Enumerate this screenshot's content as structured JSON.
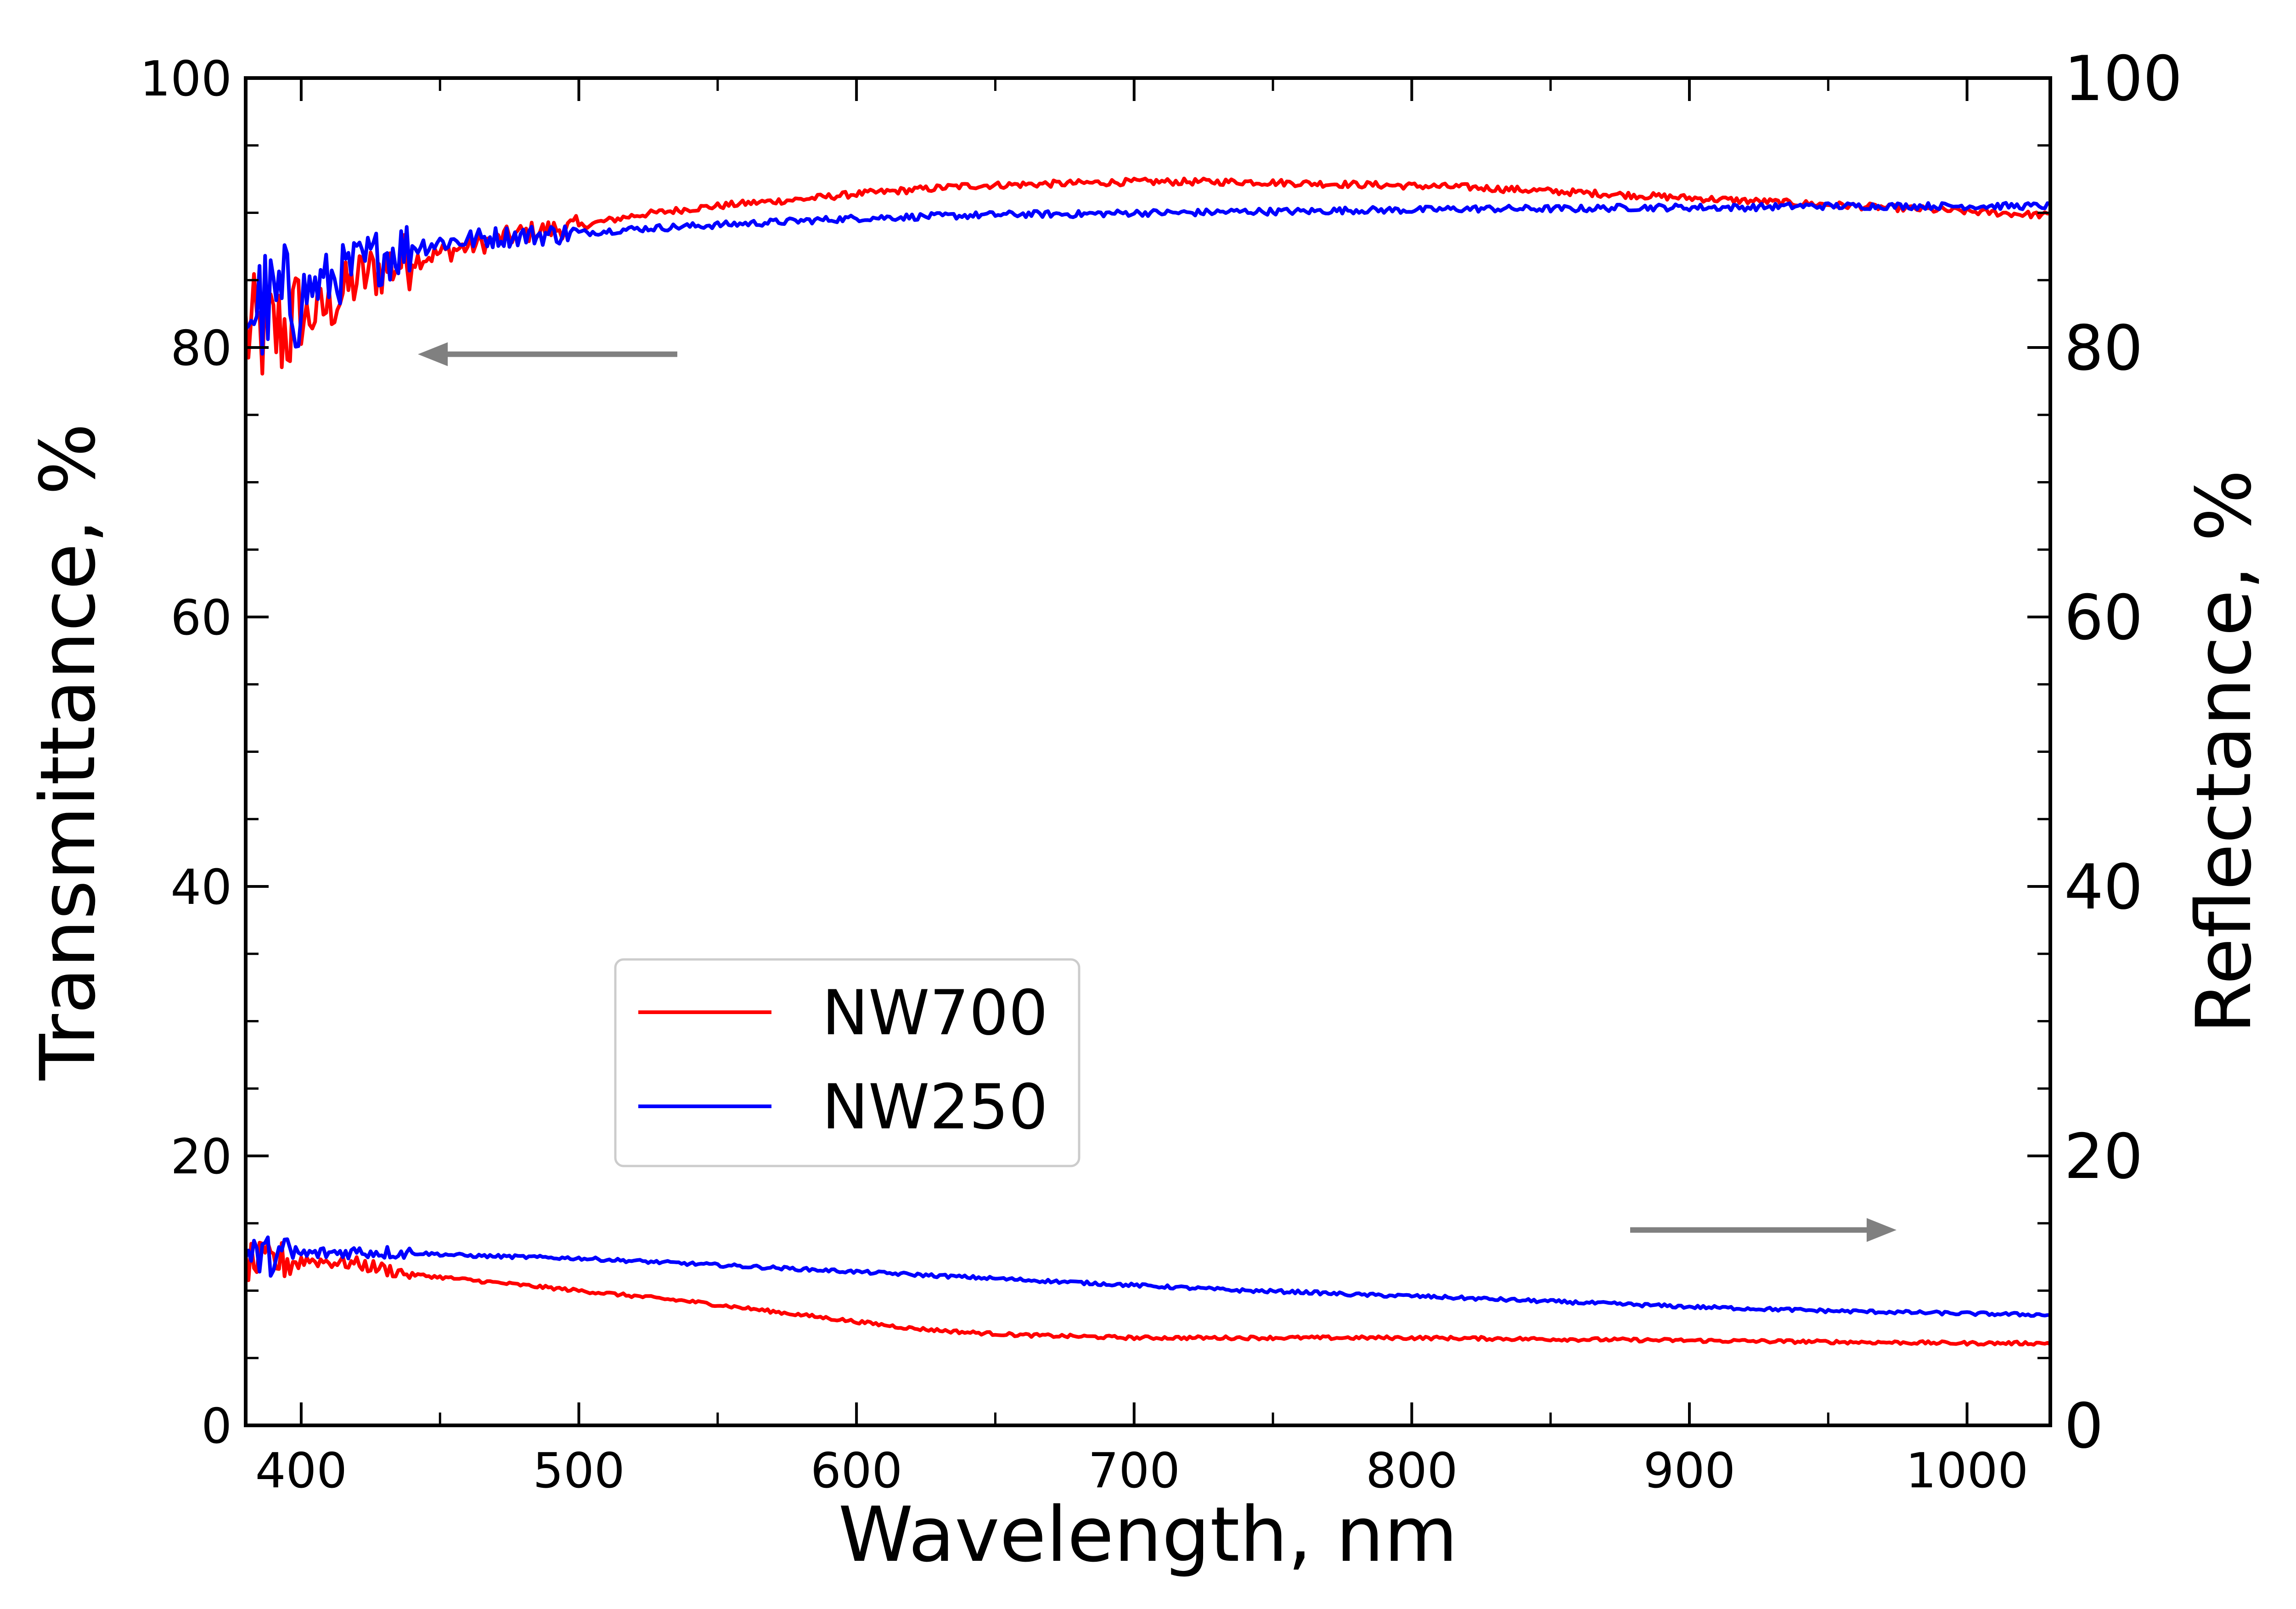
{
  "chart_data": {
    "type": "line",
    "xlabel": "Wavelength, nm",
    "ylabel_left": "Transmittance, %",
    "ylabel_right": "Reflectance, %",
    "xlim": [
      380,
      1030
    ],
    "ylim": [
      0,
      100
    ],
    "y2lim": [
      0,
      100
    ],
    "x_ticks": [
      400,
      500,
      600,
      700,
      800,
      900,
      1000
    ],
    "y_ticks": [
      0,
      20,
      40,
      60,
      80,
      100
    ],
    "y2_ticks": [
      0,
      20,
      40,
      60,
      80,
      100
    ],
    "grid": false,
    "legend_position": "center-left",
    "legend": [
      "NW700",
      "NW250"
    ],
    "colors": {
      "NW700": "#ff0000",
      "NW250": "#0000ff",
      "arrow": "#808080"
    },
    "annotations": [
      {
        "type": "arrow",
        "direction": "left",
        "meaning": "transmittance curves use left axis"
      },
      {
        "type": "arrow",
        "direction": "right",
        "meaning": "reflectance curves use right axis"
      }
    ],
    "series": [
      {
        "name": "NW700",
        "quantity": "transmittance",
        "axis": "left",
        "color": "#ff0000",
        "x": [
          380,
          390,
          400,
          410,
          420,
          430,
          440,
          450,
          460,
          470,
          480,
          500,
          520,
          540,
          560,
          580,
          600,
          620,
          640,
          660,
          680,
          700,
          720,
          740,
          760,
          780,
          800,
          820,
          840,
          860,
          880,
          900,
          920,
          940,
          960,
          980,
          1000,
          1030
        ],
        "y": [
          81,
          81,
          82,
          83,
          85,
          86,
          86.5,
          87,
          87.5,
          88,
          88.5,
          89,
          89.8,
          90.3,
          90.7,
          91,
          91.4,
          91.7,
          92,
          92.1,
          92.2,
          92.3,
          92.3,
          92.3,
          92.2,
          92.1,
          92,
          91.9,
          91.7,
          91.5,
          91.3,
          91.1,
          90.9,
          90.7,
          90.5,
          90.3,
          90.1,
          89.8
        ]
      },
      {
        "name": "NW250",
        "quantity": "transmittance",
        "axis": "left",
        "color": "#0000ff",
        "x": [
          380,
          390,
          400,
          410,
          420,
          430,
          440,
          450,
          460,
          470,
          480,
          500,
          520,
          540,
          560,
          580,
          600,
          620,
          640,
          660,
          680,
          700,
          720,
          740,
          760,
          780,
          800,
          820,
          840,
          860,
          880,
          900,
          920,
          940,
          960,
          980,
          1000,
          1030
        ],
        "y": [
          83,
          83,
          84,
          85,
          86,
          87,
          87.5,
          87.8,
          88,
          88.2,
          88.3,
          88.5,
          88.8,
          89,
          89.2,
          89.4,
          89.6,
          89.7,
          89.8,
          89.9,
          89.9,
          90,
          90,
          90.1,
          90.1,
          90.2,
          90.2,
          90.3,
          90.3,
          90.3,
          90.4,
          90.4,
          90.4,
          90.5,
          90.5,
          90.5,
          90.5,
          90.5
        ]
      },
      {
        "name": "NW700",
        "quantity": "reflectance",
        "axis": "right",
        "color": "#ff0000",
        "x": [
          380,
          400,
          420,
          440,
          460,
          480,
          500,
          520,
          540,
          560,
          580,
          600,
          620,
          640,
          660,
          680,
          700,
          720,
          740,
          760,
          780,
          800,
          850,
          900,
          950,
          1000,
          1030
        ],
        "y": [
          12,
          12.3,
          12,
          11.2,
          10.8,
          10.4,
          10,
          9.6,
          9.2,
          8.7,
          8.2,
          7.7,
          7.2,
          6.9,
          6.7,
          6.6,
          6.5,
          6.5,
          6.5,
          6.5,
          6.5,
          6.5,
          6.4,
          6.3,
          6.2,
          6.1,
          6.1
        ]
      },
      {
        "name": "NW250",
        "quantity": "reflectance",
        "axis": "right",
        "color": "#0000ff",
        "x": [
          380,
          400,
          420,
          440,
          460,
          480,
          500,
          520,
          540,
          560,
          580,
          600,
          620,
          640,
          660,
          680,
          700,
          720,
          740,
          760,
          780,
          800,
          850,
          900,
          950,
          1000,
          1030
        ],
        "y": [
          12.5,
          12.7,
          12.9,
          12.8,
          12.6,
          12.5,
          12.4,
          12.2,
          12,
          11.8,
          11.6,
          11.4,
          11.2,
          11,
          10.8,
          10.6,
          10.4,
          10.2,
          10,
          9.9,
          9.7,
          9.6,
          9.2,
          8.8,
          8.5,
          8.3,
          8.2
        ]
      }
    ]
  }
}
